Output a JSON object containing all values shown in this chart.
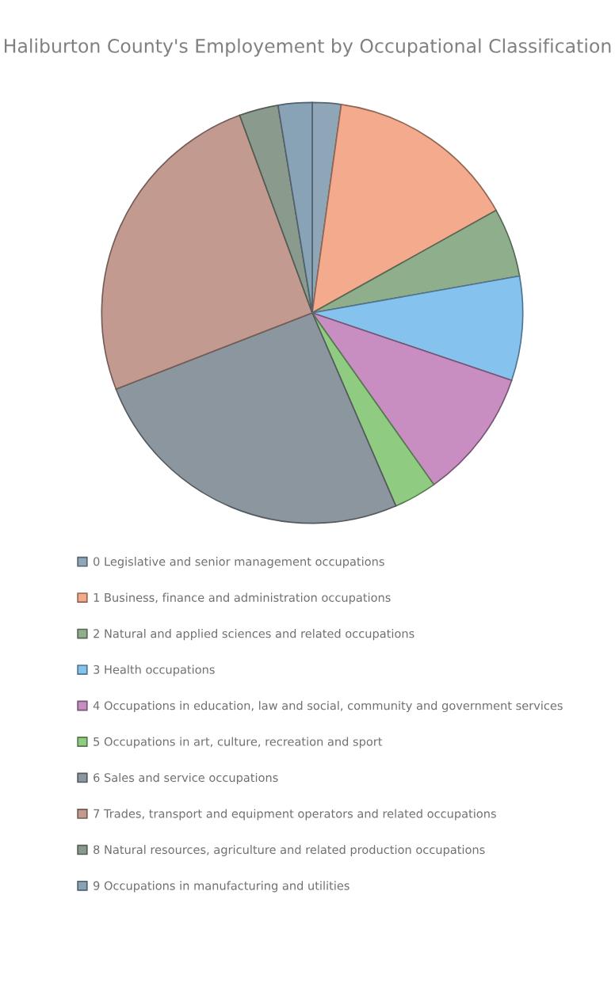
{
  "chart_data": {
    "type": "pie",
    "title": "Haliburton County's Employement by Occupational Classification",
    "categories": [
      "0 Legislative and senior management occupations",
      "1 Business, finance and administration occupations",
      "2 Natural and applied sciences and related occupations",
      "3 Health occupations",
      "4 Occupations in education, law and social, community and government services",
      "5 Occupations in art, culture, recreation and sport",
      "6 Sales and service occupations",
      "7 Trades, transport and equipment operators and related occupations",
      "8 Natural resources, agriculture and related production occupations",
      "9 Occupations in manufacturing and utilities"
    ],
    "values": [
      2.2,
      14.7,
      5.3,
      8.0,
      10.0,
      3.3,
      25.6,
      25.3,
      3.0,
      2.6
    ],
    "colors": [
      "#8ea6b8",
      "#f4aa8c",
      "#8fae8c",
      "#86c2ee",
      "#c88ec2",
      "#8fcc82",
      "#8c969e",
      "#c29a90",
      "#8a9a8c",
      "#88a2b6"
    ],
    "legend": "bottom"
  }
}
